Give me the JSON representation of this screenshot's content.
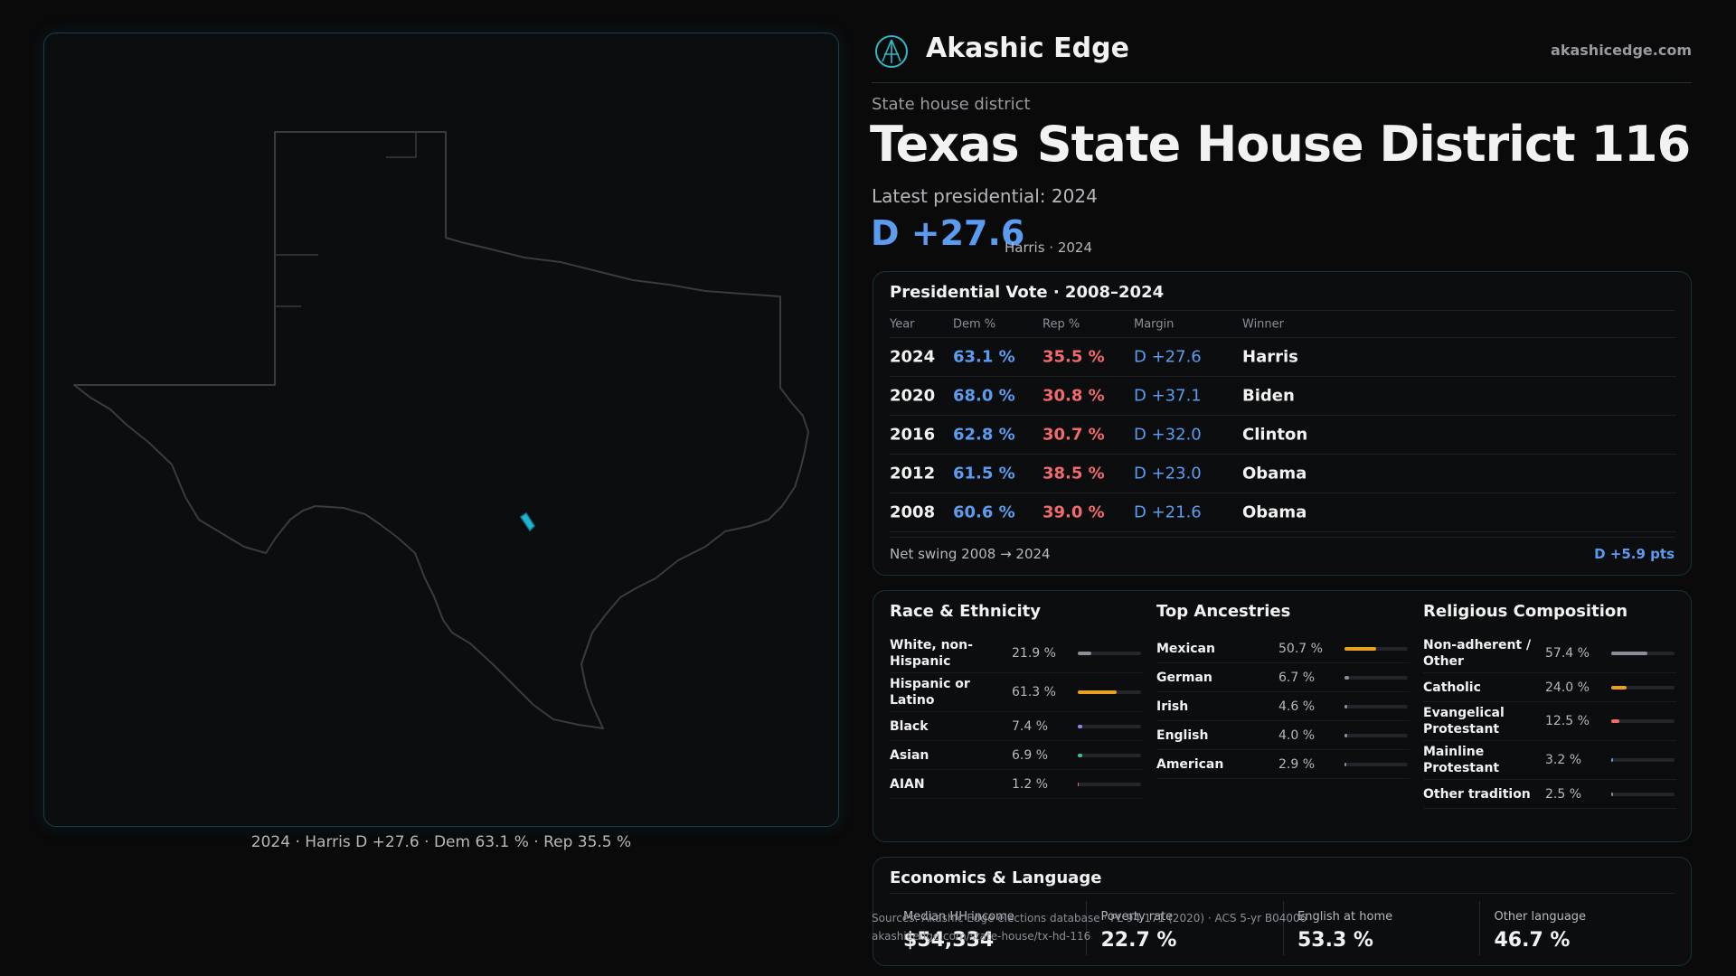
{
  "header": {
    "brand": "Akashic Edge",
    "site": "akashicedge.com"
  },
  "hero": {
    "kicker": "State house district",
    "state": "Texas",
    "title": "State House District 116",
    "latest": "Latest presidential: 2024",
    "margin": "D +27.6",
    "margin_note": "Harris · 2024"
  },
  "map": {
    "caption": "2024 · Harris D +27.6 · Dem 63.1 % · Rep 35.5 %"
  },
  "vote_table": {
    "title": "Presidential Vote · 2008–2024",
    "columns": [
      "Year",
      "Dem %",
      "Rep %",
      "Margin",
      "Winner"
    ],
    "rows": [
      [
        "2024",
        "63.1 %",
        "35.5 %",
        "D +27.6",
        "Harris"
      ],
      [
        "2020",
        "68.0 %",
        "30.8 %",
        "D +37.1",
        "Biden"
      ],
      [
        "2016",
        "62.8 %",
        "30.7 %",
        "D +32.0",
        "Clinton"
      ],
      [
        "2012",
        "61.5 %",
        "38.5 %",
        "D +23.0",
        "Obama"
      ],
      [
        "2008",
        "60.6 %",
        "39.0 %",
        "D +21.6",
        "Obama"
      ]
    ],
    "footer_label": "Net swing 2008 → 2024",
    "footer_value": "D +5.9 pts"
  },
  "race": {
    "title": "Race & Ethnicity",
    "items": [
      {
        "label": "White, non-Hispanic",
        "value": 21.9,
        "value_label": "21.9 %",
        "color": "#8a8f98"
      },
      {
        "label": "Hispanic or Latino",
        "value": 61.3,
        "value_label": "61.3 %",
        "color": "#e8a020"
      },
      {
        "label": "Black",
        "value": 7.4,
        "value_label": "7.4 %",
        "color": "#9b7ff0"
      },
      {
        "label": "Asian",
        "value": 6.9,
        "value_label": "6.9 %",
        "color": "#3cc28a"
      },
      {
        "label": "AIAN",
        "value": 1.2,
        "value_label": "1.2 %",
        "color": "#f26b6b"
      }
    ]
  },
  "ancestries": {
    "title": "Top Ancestries",
    "items": [
      {
        "label": "Mexican",
        "value": 50.7,
        "value_label": "50.7 %",
        "color": "#e8a020"
      },
      {
        "label": "German",
        "value": 6.7,
        "value_label": "6.7 %",
        "color": "#8a8f98"
      },
      {
        "label": "Irish",
        "value": 4.6,
        "value_label": "4.6 %",
        "color": "#8a8f98"
      },
      {
        "label": "English",
        "value": 4.0,
        "value_label": "4.0 %",
        "color": "#8a8f98"
      },
      {
        "label": "American",
        "value": 2.9,
        "value_label": "2.9 %",
        "color": "#8a8f98"
      }
    ]
  },
  "religion": {
    "title": "Religious Composition",
    "items": [
      {
        "label": "Non-adherent / Other",
        "value": 57.4,
        "value_label": "57.4 %",
        "color": "#8a8f98"
      },
      {
        "label": "Catholic",
        "value": 24.0,
        "value_label": "24.0 %",
        "color": "#e8a020"
      },
      {
        "label": "Evangelical Protestant",
        "value": 12.5,
        "value_label": "12.5 %",
        "color": "#f26b6b"
      },
      {
        "label": "Mainline Protestant",
        "value": 3.2,
        "value_label": "3.2 %",
        "color": "#5b9cf0"
      },
      {
        "label": "Other tradition",
        "value": 2.5,
        "value_label": "2.5 %",
        "color": "#8a8f98"
      }
    ]
  },
  "economics": {
    "title": "Economics & Language",
    "items": [
      {
        "label": "Median HH income",
        "value": "$54,334"
      },
      {
        "label": "Poverty rate",
        "value": "22.7 %"
      },
      {
        "label": "English at home",
        "value": "53.3 %"
      },
      {
        "label": "Other language",
        "value": "46.7 %"
      }
    ]
  },
  "footer": {
    "sources": "Sources: Akashic Edge elections database · PL 94-171 (2020) · ACS 5-yr B04006",
    "url": "akashicedge.com/state-house/tx-hd-116"
  }
}
